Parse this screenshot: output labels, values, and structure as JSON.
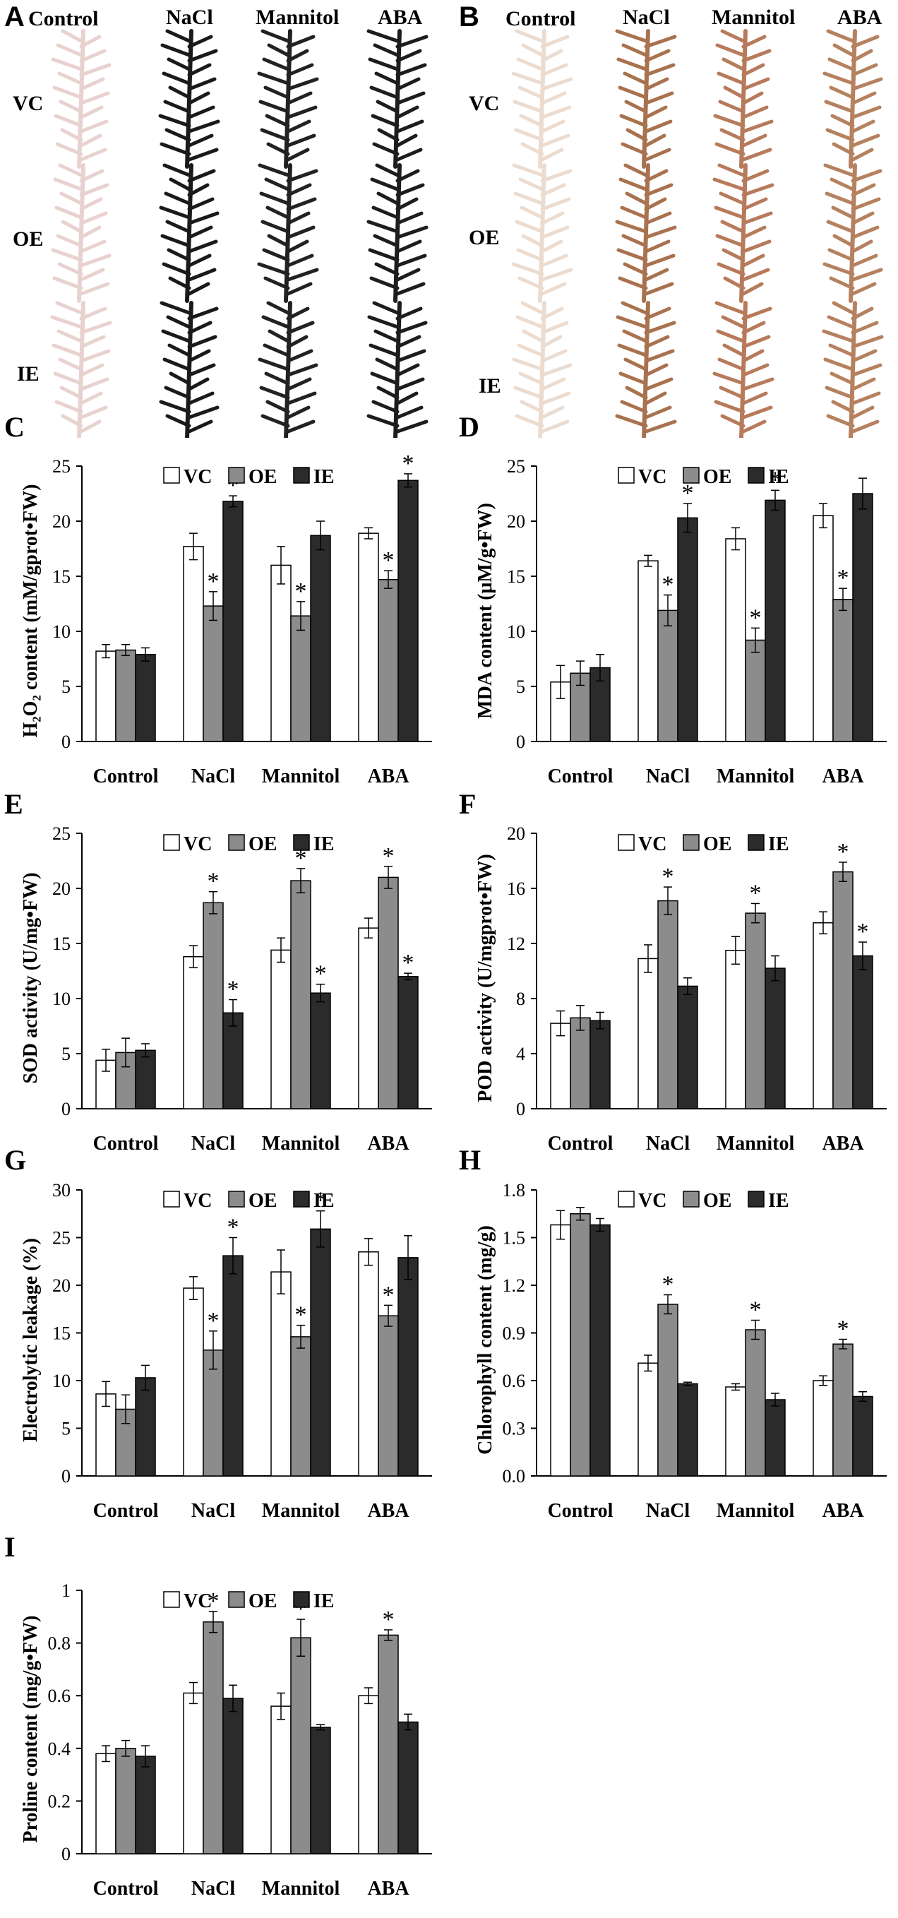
{
  "figure": {
    "panel_A_letter": "A",
    "panel_B_letter": "B",
    "photo_columns": [
      "Control",
      "NaCl",
      "Mannitol",
      "ABA"
    ],
    "photo_rows": [
      "VC",
      "OE",
      "IE"
    ],
    "stain_colors": {
      "panel_A": [
        "#e8d2cf",
        "#1a1a1a",
        "#222222",
        "#1d1d1f"
      ],
      "panel_B": [
        "#ecdcd0",
        "#a9724f",
        "#b77a5b",
        "#b5815f"
      ]
    }
  },
  "chart_data": [
    {
      "panel": "C",
      "type": "bar",
      "categories": [
        "Control",
        "NaCl",
        "Mannitol",
        "ABA"
      ],
      "legend": [
        "VC",
        "OE",
        "IE"
      ],
      "ylabel": "H₂O₂ content (mM/gprot•FW)",
      "ylim": [
        0,
        25
      ],
      "yticks": [
        0,
        5,
        10,
        15,
        20,
        25
      ],
      "tick_decimals": 0,
      "series": [
        {
          "name": "VC",
          "values": [
            8.2,
            17.7,
            16.0,
            18.9
          ],
          "errors": [
            0.6,
            1.2,
            1.7,
            0.5
          ],
          "sig": [
            false,
            false,
            false,
            false
          ]
        },
        {
          "name": "OE",
          "values": [
            8.3,
            12.3,
            11.4,
            14.7
          ],
          "errors": [
            0.5,
            1.3,
            1.3,
            0.8
          ],
          "sig": [
            false,
            true,
            true,
            true
          ]
        },
        {
          "name": "IE",
          "values": [
            7.9,
            21.8,
            18.7,
            23.7
          ],
          "errors": [
            0.6,
            0.5,
            1.3,
            0.6
          ],
          "sig": [
            false,
            true,
            false,
            true
          ]
        }
      ],
      "significance_marker": "*"
    },
    {
      "panel": "D",
      "type": "bar",
      "categories": [
        "Control",
        "NaCl",
        "Mannitol",
        "ABA"
      ],
      "legend": [
        "VC",
        "OE",
        "IE"
      ],
      "ylabel": "MDA content (μM/g•FW)",
      "ylim": [
        0,
        25
      ],
      "yticks": [
        0,
        5,
        10,
        15,
        20,
        25
      ],
      "tick_decimals": 0,
      "series": [
        {
          "name": "VC",
          "values": [
            5.4,
            16.4,
            18.4,
            20.5
          ],
          "errors": [
            1.5,
            0.5,
            1.0,
            1.1
          ],
          "sig": [
            false,
            false,
            false,
            false
          ]
        },
        {
          "name": "OE",
          "values": [
            6.2,
            11.9,
            9.2,
            12.9
          ],
          "errors": [
            1.1,
            1.4,
            1.1,
            1.0
          ],
          "sig": [
            false,
            true,
            true,
            true
          ]
        },
        {
          "name": "IE",
          "values": [
            6.7,
            20.3,
            21.9,
            22.5
          ],
          "errors": [
            1.2,
            1.3,
            0.9,
            1.4
          ],
          "sig": [
            false,
            true,
            true,
            false
          ]
        }
      ],
      "significance_marker": "*"
    },
    {
      "panel": "E",
      "type": "bar",
      "categories": [
        "Control",
        "NaCl",
        "Mannitol",
        "ABA"
      ],
      "legend": [
        "VC",
        "OE",
        "IE"
      ],
      "ylabel": "SOD activity (U/mg•FW)",
      "ylim": [
        0,
        25
      ],
      "yticks": [
        0,
        5,
        10,
        15,
        20,
        25
      ],
      "tick_decimals": 0,
      "series": [
        {
          "name": "VC",
          "values": [
            4.4,
            13.8,
            14.4,
            16.4
          ],
          "errors": [
            1.0,
            1.0,
            1.1,
            0.9
          ],
          "sig": [
            false,
            false,
            false,
            false
          ]
        },
        {
          "name": "OE",
          "values": [
            5.1,
            18.7,
            20.7,
            21.0
          ],
          "errors": [
            1.3,
            1.0,
            1.1,
            1.0
          ],
          "sig": [
            false,
            true,
            true,
            true
          ]
        },
        {
          "name": "IE",
          "values": [
            5.3,
            8.7,
            10.5,
            12.0
          ],
          "errors": [
            0.6,
            1.2,
            0.8,
            0.3
          ],
          "sig": [
            false,
            true,
            true,
            true
          ]
        }
      ],
      "significance_marker": "*"
    },
    {
      "panel": "F",
      "type": "bar",
      "categories": [
        "Control",
        "NaCl",
        "Mannitol",
        "ABA"
      ],
      "legend": [
        "VC",
        "OE",
        "IE"
      ],
      "ylabel": "POD activity (U/mgprot•FW)",
      "ylim": [
        0,
        20
      ],
      "yticks": [
        0,
        4,
        8,
        12,
        16,
        20
      ],
      "tick_decimals": 0,
      "series": [
        {
          "name": "VC",
          "values": [
            6.2,
            10.9,
            11.5,
            13.5
          ],
          "errors": [
            0.9,
            1.0,
            1.0,
            0.8
          ],
          "sig": [
            false,
            false,
            false,
            false
          ]
        },
        {
          "name": "OE",
          "values": [
            6.6,
            15.1,
            14.2,
            17.2
          ],
          "errors": [
            0.9,
            1.0,
            0.7,
            0.7
          ],
          "sig": [
            false,
            true,
            true,
            true
          ]
        },
        {
          "name": "IE",
          "values": [
            6.4,
            8.9,
            10.2,
            11.1
          ],
          "errors": [
            0.6,
            0.6,
            0.9,
            1.0
          ],
          "sig": [
            false,
            false,
            false,
            true
          ]
        }
      ],
      "significance_marker": "*"
    },
    {
      "panel": "G",
      "type": "bar",
      "categories": [
        "Control",
        "NaCl",
        "Mannitol",
        "ABA"
      ],
      "legend": [
        "VC",
        "OE",
        "IE"
      ],
      "ylabel": "Electrolytic leakage (%)",
      "ylim": [
        0,
        30
      ],
      "yticks": [
        0,
        5,
        10,
        15,
        20,
        25,
        30
      ],
      "tick_decimals": 0,
      "series": [
        {
          "name": "VC",
          "values": [
            8.6,
            19.7,
            21.4,
            23.5
          ],
          "errors": [
            1.3,
            1.2,
            2.3,
            1.4
          ],
          "sig": [
            false,
            false,
            false,
            false
          ]
        },
        {
          "name": "OE",
          "values": [
            7.0,
            13.2,
            14.6,
            16.8
          ],
          "errors": [
            1.5,
            2.0,
            1.2,
            1.1
          ],
          "sig": [
            false,
            true,
            true,
            true
          ]
        },
        {
          "name": "IE",
          "values": [
            10.3,
            23.1,
            25.9,
            22.9
          ],
          "errors": [
            1.3,
            1.9,
            1.9,
            2.3
          ],
          "sig": [
            false,
            true,
            true,
            false
          ]
        }
      ],
      "significance_marker": "*"
    },
    {
      "panel": "H",
      "type": "bar",
      "categories": [
        "Control",
        "NaCl",
        "Mannitol",
        "ABA"
      ],
      "legend": [
        "VC",
        "OE",
        "IE"
      ],
      "ylabel": "Chlorophyll content (mg/g)",
      "ylim": [
        0,
        1.8
      ],
      "yticks": [
        0,
        0.3,
        0.6,
        0.9,
        1.2,
        1.5,
        1.8
      ],
      "tick_decimals": 1,
      "series": [
        {
          "name": "VC",
          "values": [
            1.58,
            0.71,
            0.56,
            0.6
          ],
          "errors": [
            0.09,
            0.05,
            0.02,
            0.03
          ],
          "sig": [
            false,
            false,
            false,
            false
          ]
        },
        {
          "name": "OE",
          "values": [
            1.65,
            1.08,
            0.92,
            0.83
          ],
          "errors": [
            0.04,
            0.06,
            0.06,
            0.03
          ],
          "sig": [
            false,
            true,
            true,
            true
          ]
        },
        {
          "name": "IE",
          "values": [
            1.58,
            0.58,
            0.48,
            0.5
          ],
          "errors": [
            0.04,
            0.01,
            0.04,
            0.03
          ],
          "sig": [
            false,
            false,
            false,
            false
          ]
        }
      ],
      "significance_marker": "*"
    },
    {
      "panel": "I",
      "type": "bar",
      "categories": [
        "Control",
        "NaCl",
        "Mannitol",
        "ABA"
      ],
      "legend": [
        "VC",
        "OE",
        "IE"
      ],
      "ylabel": "Proline content (mg/g•FW)",
      "ylim": [
        0,
        1
      ],
      "yticks": [
        0,
        0.2,
        0.4,
        0.6,
        0.8,
        1
      ],
      "tick_decimals": -1,
      "series": [
        {
          "name": "VC",
          "values": [
            0.38,
            0.61,
            0.56,
            0.6
          ],
          "errors": [
            0.03,
            0.04,
            0.05,
            0.03
          ],
          "sig": [
            false,
            false,
            false,
            false
          ]
        },
        {
          "name": "OE",
          "values": [
            0.4,
            0.88,
            0.82,
            0.83
          ],
          "errors": [
            0.03,
            0.04,
            0.07,
            0.02
          ],
          "sig": [
            false,
            true,
            true,
            true
          ]
        },
        {
          "name": "IE",
          "values": [
            0.37,
            0.59,
            0.48,
            0.5
          ],
          "errors": [
            0.04,
            0.05,
            0.01,
            0.03
          ],
          "sig": [
            false,
            false,
            false,
            false
          ]
        }
      ],
      "significance_marker": "*"
    }
  ]
}
